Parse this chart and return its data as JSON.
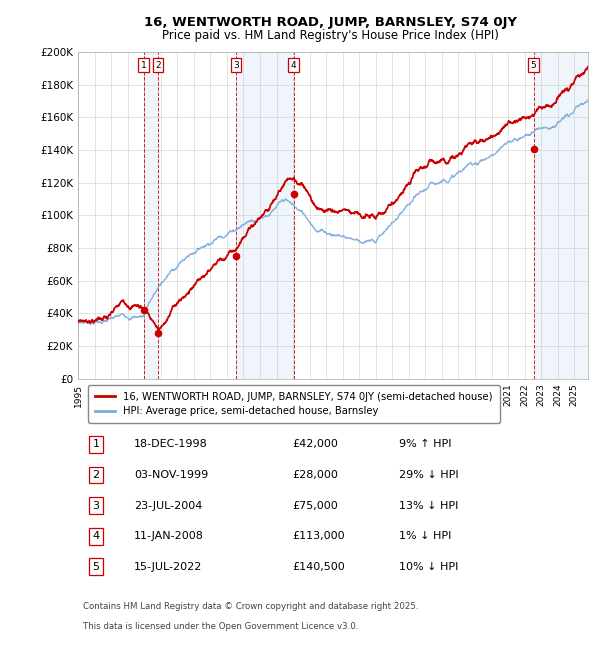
{
  "title_line1": "16, WENTWORTH ROAD, JUMP, BARNSLEY, S74 0JY",
  "title_line2": "Price paid vs. HM Land Registry's House Price Index (HPI)",
  "ylabel_ticks": [
    "£0",
    "£20K",
    "£40K",
    "£60K",
    "£80K",
    "£100K",
    "£120K",
    "£140K",
    "£160K",
    "£180K",
    "£200K"
  ],
  "ytick_values": [
    0,
    20000,
    40000,
    60000,
    80000,
    100000,
    120000,
    140000,
    160000,
    180000,
    200000
  ],
  "xlim_start": 1995.0,
  "xlim_end": 2025.83,
  "ylim_min": 0,
  "ylim_max": 200000,
  "hpi_color": "#7aaadd",
  "price_color": "#cc0000",
  "bg_color": "#ffffff",
  "grid_color": "#cccccc",
  "vline_color": "#cc0000",
  "shade_color": "#aaccee",
  "transactions": [
    {
      "num": 1,
      "date_str": "18-DEC-1998",
      "year": 1998.96,
      "price": 42000,
      "label": "9% ↑ HPI"
    },
    {
      "num": 2,
      "date_str": "03-NOV-1999",
      "year": 1999.84,
      "price": 28000,
      "label": "29% ↓ HPI"
    },
    {
      "num": 3,
      "date_str": "23-JUL-2004",
      "year": 2004.56,
      "price": 75000,
      "label": "13% ↓ HPI"
    },
    {
      "num": 4,
      "date_str": "11-JAN-2008",
      "year": 2008.03,
      "price": 113000,
      "label": "1% ↓ HPI"
    },
    {
      "num": 5,
      "date_str": "15-JUL-2022",
      "year": 2022.54,
      "price": 140500,
      "label": "10% ↓ HPI"
    }
  ],
  "legend_line1": "16, WENTWORTH ROAD, JUMP, BARNSLEY, S74 0JY (semi-detached house)",
  "legend_line2": "HPI: Average price, semi-detached house, Barnsley",
  "footnote_line1": "Contains HM Land Registry data © Crown copyright and database right 2025.",
  "footnote_line2": "This data is licensed under the Open Government Licence v3.0.",
  "shaded_regions": [
    {
      "start": 1998.96,
      "end": 1999.84
    },
    {
      "start": 2004.56,
      "end": 2008.03
    },
    {
      "start": 2022.54,
      "end": 2025.83
    }
  ],
  "xtick_years": [
    1995,
    1996,
    1997,
    1998,
    1999,
    2000,
    2001,
    2002,
    2003,
    2004,
    2005,
    2006,
    2007,
    2008,
    2009,
    2010,
    2011,
    2012,
    2013,
    2014,
    2015,
    2016,
    2017,
    2018,
    2019,
    2020,
    2021,
    2022,
    2023,
    2024,
    2025
  ]
}
